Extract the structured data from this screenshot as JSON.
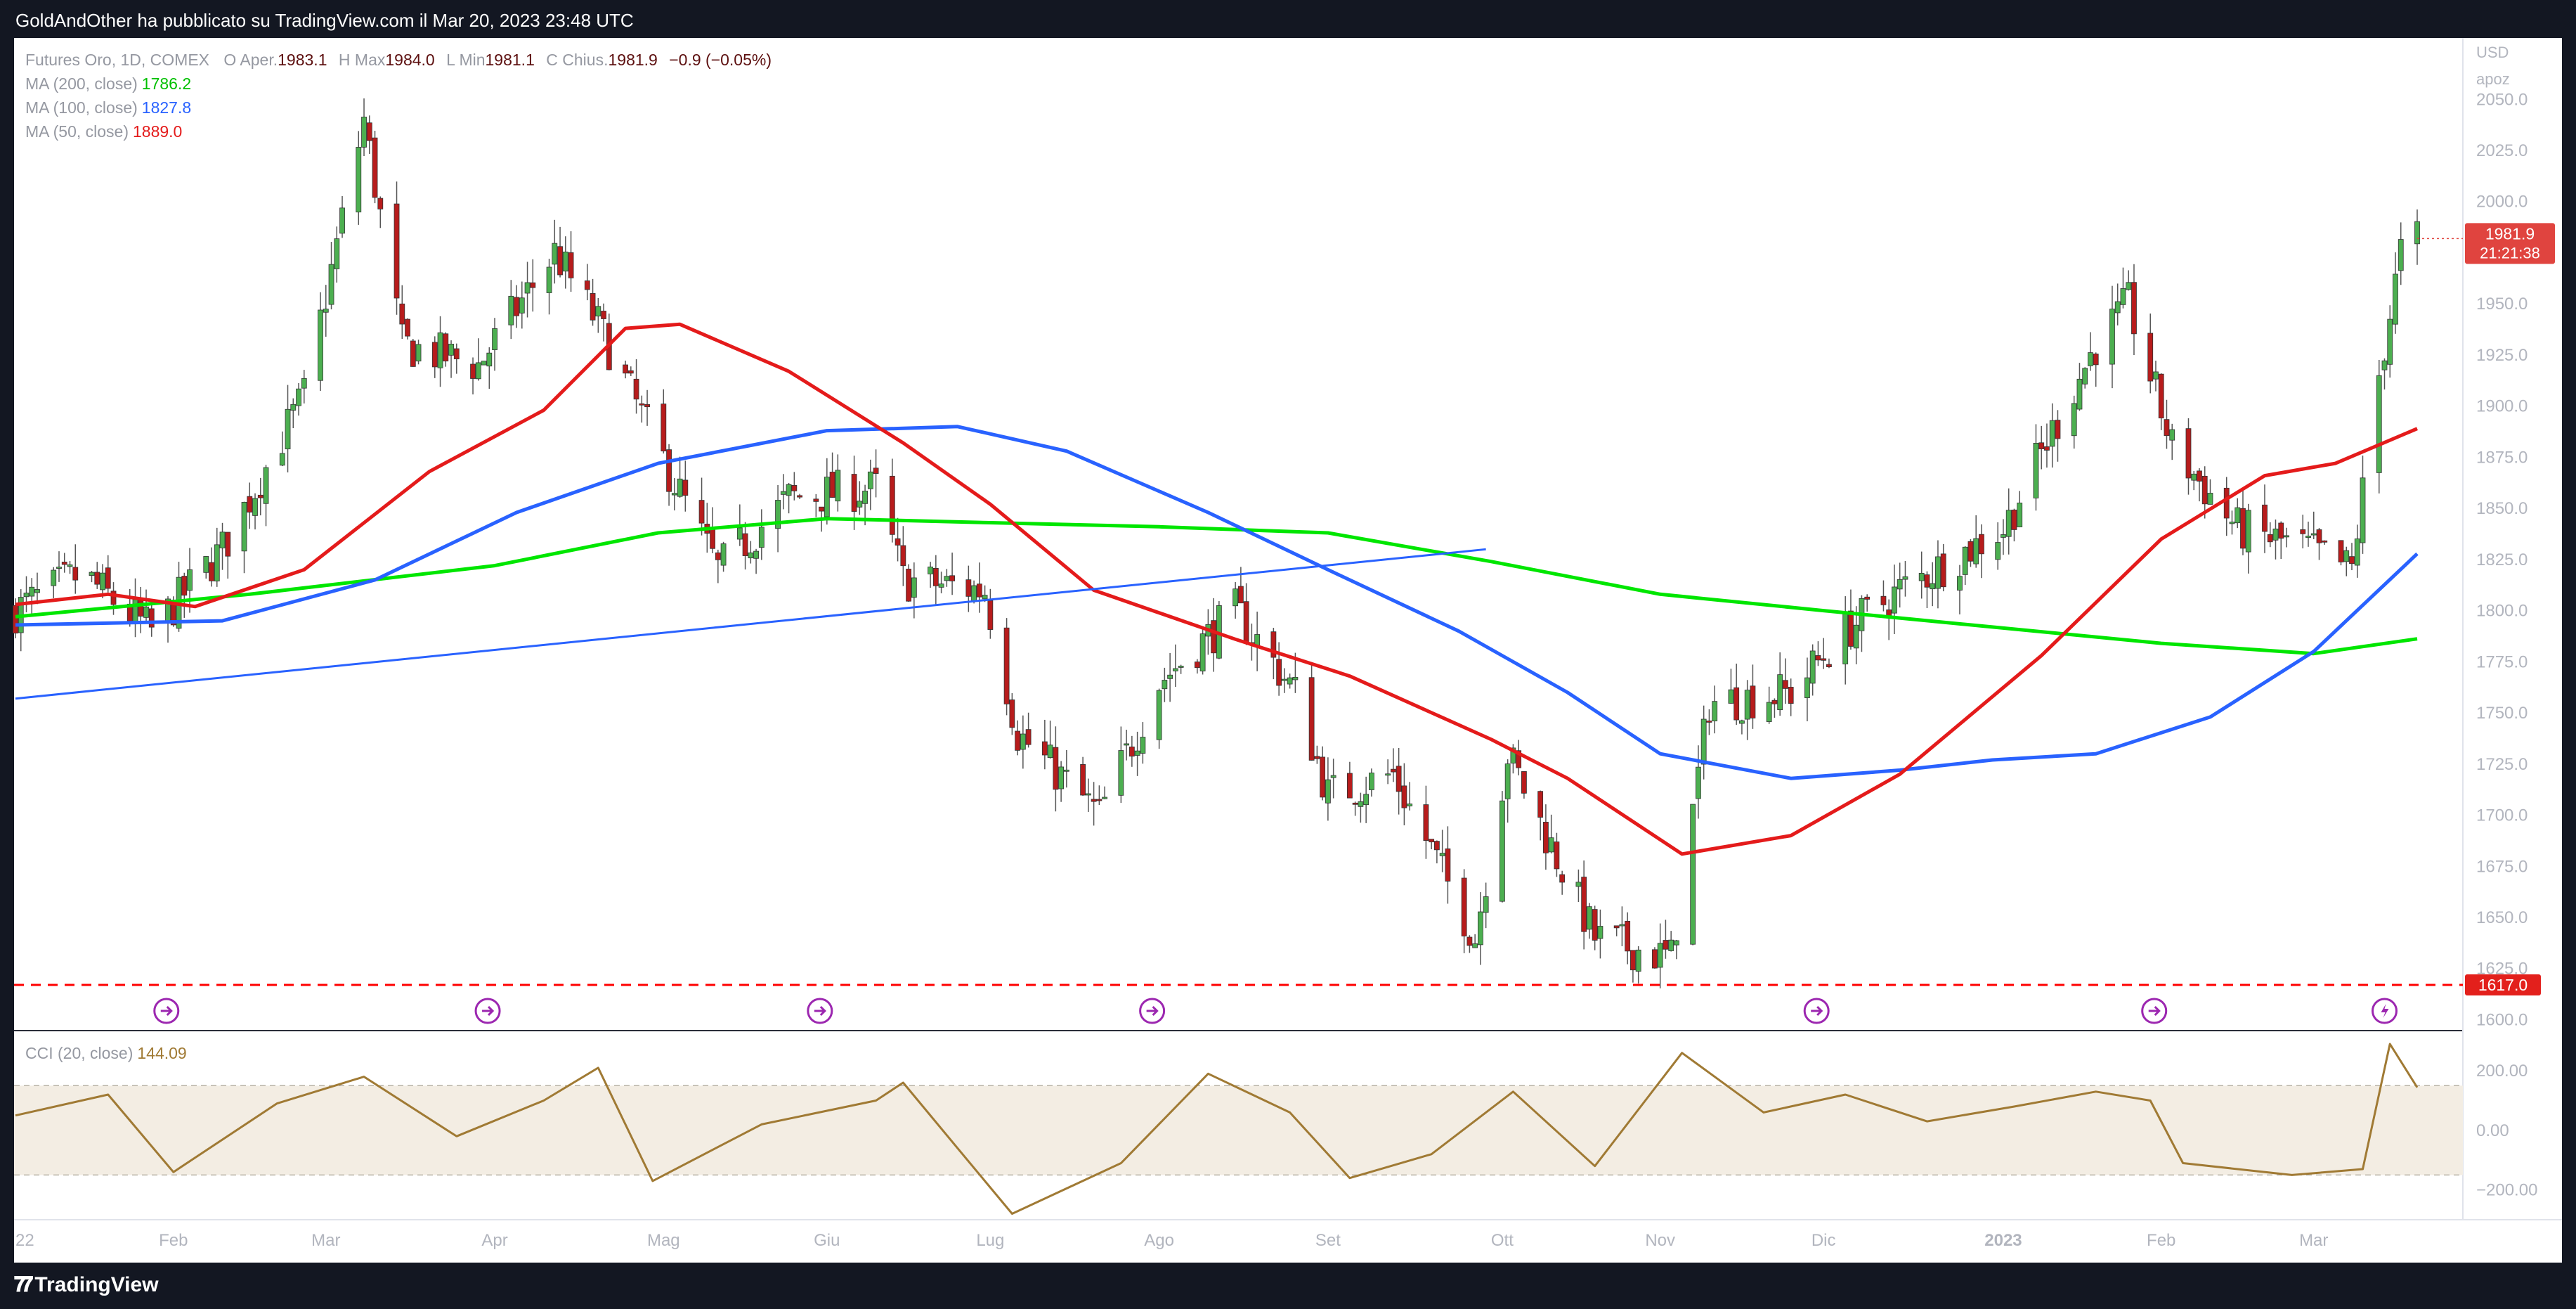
{
  "header": {
    "publisher": "GoldAndOther ha pubblicato su TradingView.com il Mar 20, 2023 23:48 UTC"
  },
  "legend": {
    "instrument": "Futures Oro, 1D, COMEX",
    "o_label": "O",
    "o_key": "Aper.",
    "o_val": "1983.1",
    "h_label": "H",
    "h_key": "Max",
    "h_val": "1984.0",
    "l_label": "L",
    "l_key": "Min",
    "l_val": "1981.1",
    "c_label": "C",
    "c_key": "Chius.",
    "c_val": "1981.9",
    "change": "−0.9 (−0.05%)",
    "ma200_label": "MA (200, close)",
    "ma200_val": "1786.2",
    "ma100_label": "MA (100, close)",
    "ma100_val": "1827.8",
    "ma50_label": "MA (50, close)",
    "ma50_val": "1889.0",
    "cci_label": "CCI (20, close)",
    "cci_val": "144.09"
  },
  "colors": {
    "background": "#ffffff",
    "frame": "#131722",
    "up": "#26a69a",
    "down": "#ef5350",
    "candle_up": "#4caf50",
    "candle_down": "#b71c1c",
    "ma200": "#00e600",
    "ma100": "#2962ff",
    "ma50": "#e41b1b",
    "cci": "#a07a34",
    "cci_band": "#f3ede3",
    "trendline": "#2962ff",
    "support": "#ff0000",
    "price_badge": "#e0443f",
    "event_icon": "#9c27b0"
  },
  "axis": {
    "currency": "USD",
    "unit": "apoz",
    "price_ticks": [
      "2050.0",
      "2025.0",
      "2000.0",
      "1975.0",
      "1950.0",
      "1925.0",
      "1900.0",
      "1875.0",
      "1850.0",
      "1825.0",
      "1800.0",
      "1775.0",
      "1750.0",
      "1725.0",
      "1700.0",
      "1675.0",
      "1650.0",
      "1625.0",
      "1600.0"
    ],
    "cci_ticks": [
      "200.00",
      "0.00",
      "−200.00"
    ],
    "month_labels": [
      "22",
      "Feb",
      "Mar",
      "Apr",
      "Mag",
      "Giu",
      "Lug",
      "Ago",
      "Set",
      "Ott",
      "Nov",
      "Dic",
      "2023",
      "Feb",
      "Mar"
    ],
    "current_price": "1981.9",
    "countdown": "21:21:38",
    "support_price": "1617.0"
  },
  "chart_data": {
    "type": "candlestick",
    "title": "",
    "x_start": "2022-01-03",
    "x_end": "2023-03-20",
    "ylim": [
      1595,
      2080
    ],
    "series": [
      {
        "name": "MA (200, close)",
        "points": [
          [
            "2022-01-03",
            1797
          ],
          [
            "2022-02-15",
            1808
          ],
          [
            "2022-04-01",
            1822
          ],
          [
            "2022-05-01",
            1838
          ],
          [
            "2022-06-01",
            1845
          ],
          [
            "2022-07-01",
            1843
          ],
          [
            "2022-08-01",
            1841
          ],
          [
            "2022-09-01",
            1838
          ],
          [
            "2022-10-01",
            1824
          ],
          [
            "2022-11-01",
            1808
          ],
          [
            "2022-12-01",
            1800
          ],
          [
            "2023-01-01",
            1792
          ],
          [
            "2023-02-01",
            1784
          ],
          [
            "2023-03-01",
            1779
          ],
          [
            "2023-03-20",
            1786.2
          ]
        ]
      },
      {
        "name": "MA (100, close)",
        "points": [
          [
            "2022-01-03",
            1793
          ],
          [
            "2022-02-10",
            1795
          ],
          [
            "2022-03-10",
            1815
          ],
          [
            "2022-04-05",
            1848
          ],
          [
            "2022-05-01",
            1872
          ],
          [
            "2022-06-01",
            1888
          ],
          [
            "2022-06-25",
            1890
          ],
          [
            "2022-07-15",
            1878
          ],
          [
            "2022-08-10",
            1848
          ],
          [
            "2022-09-01",
            1820
          ],
          [
            "2022-09-25",
            1790
          ],
          [
            "2022-10-15",
            1760
          ],
          [
            "2022-11-01",
            1730
          ],
          [
            "2022-11-25",
            1718
          ],
          [
            "2022-12-15",
            1722
          ],
          [
            "2023-01-01",
            1727
          ],
          [
            "2023-01-20",
            1730
          ],
          [
            "2023-02-10",
            1748
          ],
          [
            "2023-03-01",
            1780
          ],
          [
            "2023-03-20",
            1827.8
          ]
        ]
      },
      {
        "name": "MA (50, close)",
        "points": [
          [
            "2022-01-03",
            1803
          ],
          [
            "2022-01-20",
            1808
          ],
          [
            "2022-02-05",
            1802
          ],
          [
            "2022-02-25",
            1820
          ],
          [
            "2022-03-20",
            1868
          ],
          [
            "2022-04-10",
            1898
          ],
          [
            "2022-04-25",
            1938
          ],
          [
            "2022-05-05",
            1940
          ],
          [
            "2022-05-25",
            1917
          ],
          [
            "2022-06-15",
            1882
          ],
          [
            "2022-07-01",
            1852
          ],
          [
            "2022-07-20",
            1810
          ],
          [
            "2022-08-15",
            1786
          ],
          [
            "2022-09-05",
            1768
          ],
          [
            "2022-10-01",
            1737
          ],
          [
            "2022-10-15",
            1718
          ],
          [
            "2022-11-05",
            1681
          ],
          [
            "2022-11-25",
            1690
          ],
          [
            "2022-12-15",
            1720
          ],
          [
            "2023-01-10",
            1778
          ],
          [
            "2023-02-01",
            1835
          ],
          [
            "2023-02-20",
            1866
          ],
          [
            "2023-03-05",
            1872
          ],
          [
            "2023-03-20",
            1889.0
          ]
        ]
      },
      {
        "name": "CCI (20, close)",
        "points": [
          [
            "2022-01-03",
            50
          ],
          [
            "2022-01-20",
            120
          ],
          [
            "2022-02-01",
            -140
          ],
          [
            "2022-02-20",
            90
          ],
          [
            "2022-03-08",
            180
          ],
          [
            "2022-03-25",
            -20
          ],
          [
            "2022-04-10",
            100
          ],
          [
            "2022-04-20",
            210
          ],
          [
            "2022-04-30",
            -170
          ],
          [
            "2022-05-20",
            20
          ],
          [
            "2022-06-10",
            100
          ],
          [
            "2022-06-15",
            160
          ],
          [
            "2022-06-25",
            -60
          ],
          [
            "2022-07-05",
            -280
          ],
          [
            "2022-07-25",
            -110
          ],
          [
            "2022-08-10",
            190
          ],
          [
            "2022-08-25",
            60
          ],
          [
            "2022-09-05",
            -160
          ],
          [
            "2022-09-20",
            -80
          ],
          [
            "2022-10-05",
            130
          ],
          [
            "2022-10-20",
            -120
          ],
          [
            "2022-11-05",
            260
          ],
          [
            "2022-11-20",
            60
          ],
          [
            "2022-12-05",
            120
          ],
          [
            "2022-12-20",
            30
          ],
          [
            "2023-01-05",
            80
          ],
          [
            "2023-01-20",
            130
          ],
          [
            "2023-01-30",
            100
          ],
          [
            "2023-02-05",
            -110
          ],
          [
            "2023-02-25",
            -150
          ],
          [
            "2023-03-10",
            -130
          ],
          [
            "2023-03-15",
            290
          ],
          [
            "2023-03-20",
            144.09
          ]
        ]
      }
    ],
    "trendline": [
      [
        "2022-01-03",
        1757
      ],
      [
        "2022-09-30",
        1830
      ]
    ],
    "support_level": 1617.0,
    "last_close": 1981.9
  }
}
